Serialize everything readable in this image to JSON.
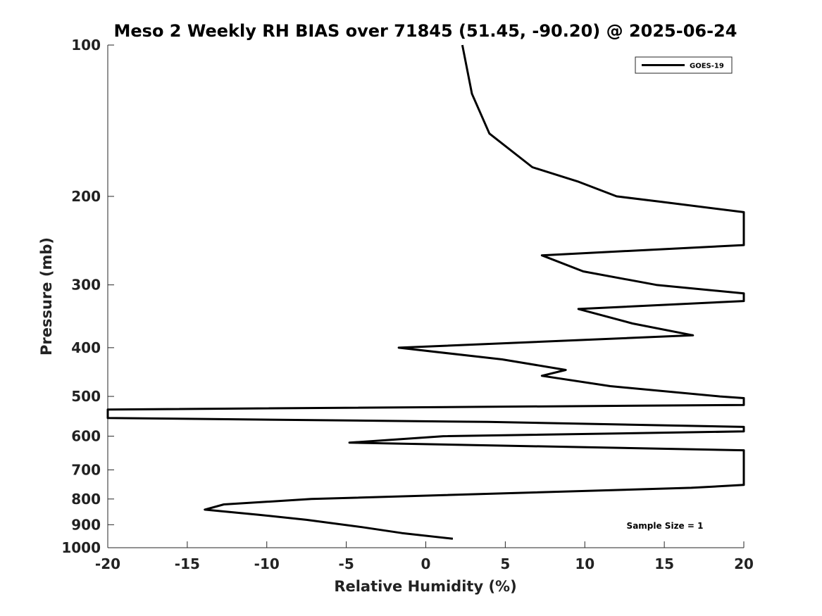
{
  "chart_data": {
    "type": "line",
    "title": "Meso 2 Weekly RH BIAS over 71845 (51.45, -90.20) @ 2025-06-24",
    "xlabel": "Relative Humidity (%)",
    "ylabel": "Pressure (mb)",
    "xlim": [
      -20,
      20
    ],
    "ylim": [
      100,
      1000
    ],
    "y_scale": "log",
    "y_reversed": true,
    "x_ticks": [
      -20,
      -15,
      -10,
      -5,
      0,
      5,
      10,
      15,
      20
    ],
    "y_ticks": [
      100,
      200,
      300,
      400,
      500,
      600,
      700,
      800,
      900,
      1000
    ],
    "grid": false,
    "legend_position": "top-right",
    "annotation": "Sample Size = 1",
    "series": [
      {
        "name": "GOES-19",
        "color": "#000000",
        "points": [
          [
            2.3,
            100
          ],
          [
            2.9,
            125
          ],
          [
            4.0,
            150
          ],
          [
            6.7,
            175
          ],
          [
            9.6,
            187
          ],
          [
            12.0,
            200
          ],
          [
            14.8,
            205
          ],
          [
            20.0,
            215
          ],
          [
            20.0,
            250
          ],
          [
            7.3,
            262
          ],
          [
            9.9,
            282
          ],
          [
            14.5,
            300
          ],
          [
            20.0,
            312
          ],
          [
            20.0,
            323
          ],
          [
            9.6,
            335
          ],
          [
            13.0,
            358
          ],
          [
            16.8,
            378
          ],
          [
            -1.7,
            400
          ],
          [
            4.8,
            422
          ],
          [
            8.8,
            443
          ],
          [
            7.3,
            455
          ],
          [
            11.6,
            477
          ],
          [
            18.5,
            500
          ],
          [
            20.0,
            504
          ],
          [
            20.0,
            520
          ],
          [
            -20.0,
            531
          ],
          [
            -20.0,
            552
          ],
          [
            3.9,
            562
          ],
          [
            20.0,
            575
          ],
          [
            20.0,
            587
          ],
          [
            1.1,
            600
          ],
          [
            -4.8,
            618
          ],
          [
            20.0,
            640
          ],
          [
            20.0,
            750
          ],
          [
            16.7,
            760
          ],
          [
            -7.2,
            800
          ],
          [
            -12.7,
            820
          ],
          [
            -13.9,
            840
          ],
          [
            -10.5,
            860
          ],
          [
            -7.5,
            880
          ],
          [
            -4.0,
            910
          ],
          [
            -1.5,
            935
          ],
          [
            1.7,
            960
          ]
        ]
      }
    ]
  }
}
